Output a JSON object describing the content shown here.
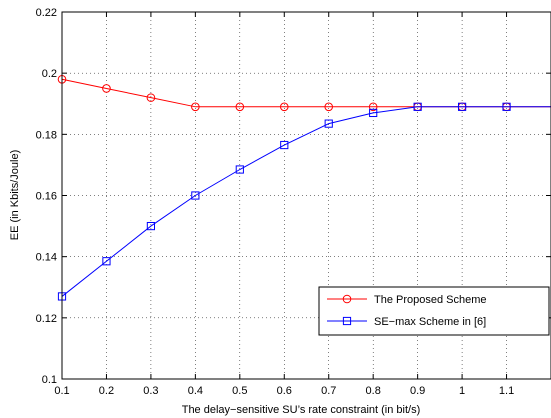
{
  "chart_data": {
    "type": "line",
    "title": "",
    "xlabel": "The delay−sensitive SU’s rate constraint (in bit/s)",
    "ylabel": "EE (in Kbits/Joule)",
    "xlim": [
      0.1,
      1.2
    ],
    "ylim": [
      0.1,
      0.22
    ],
    "x_ticks": [
      0.1,
      0.2,
      0.3,
      0.4,
      0.5,
      0.6,
      0.7,
      0.8,
      0.9,
      1.0,
      1.1
    ],
    "x_tick_labels": [
      "0.1",
      "0.2",
      "0.3",
      "0.4",
      "0.5",
      "0.6",
      "0.7",
      "0.8",
      "0.9",
      "1",
      "1.1"
    ],
    "y_ticks": [
      0.1,
      0.12,
      0.14,
      0.16,
      0.18,
      0.2,
      0.22
    ],
    "y_tick_labels": [
      "0.1",
      "0.12",
      "0.14",
      "0.16",
      "0.18",
      "0.2",
      "0.22"
    ],
    "grid": true,
    "legend_position": "lower-right",
    "x": [
      0.1,
      0.2,
      0.3,
      0.4,
      0.5,
      0.6,
      0.7,
      0.8,
      0.9,
      1.0,
      1.1,
      1.2
    ],
    "series": [
      {
        "name": "The Proposed Scheme",
        "color": "#ff0000",
        "marker": "circle",
        "values": [
          0.198,
          0.195,
          0.192,
          0.189,
          0.189,
          0.189,
          0.189,
          0.189,
          0.189,
          0.189,
          0.189,
          0.189
        ]
      },
      {
        "name": "SE−max Scheme in [6]",
        "color": "#0000ff",
        "marker": "square",
        "values": [
          0.127,
          0.1385,
          0.15,
          0.16,
          0.1685,
          0.1765,
          0.1835,
          0.187,
          0.189,
          0.189,
          0.189,
          0.189
        ]
      }
    ]
  }
}
